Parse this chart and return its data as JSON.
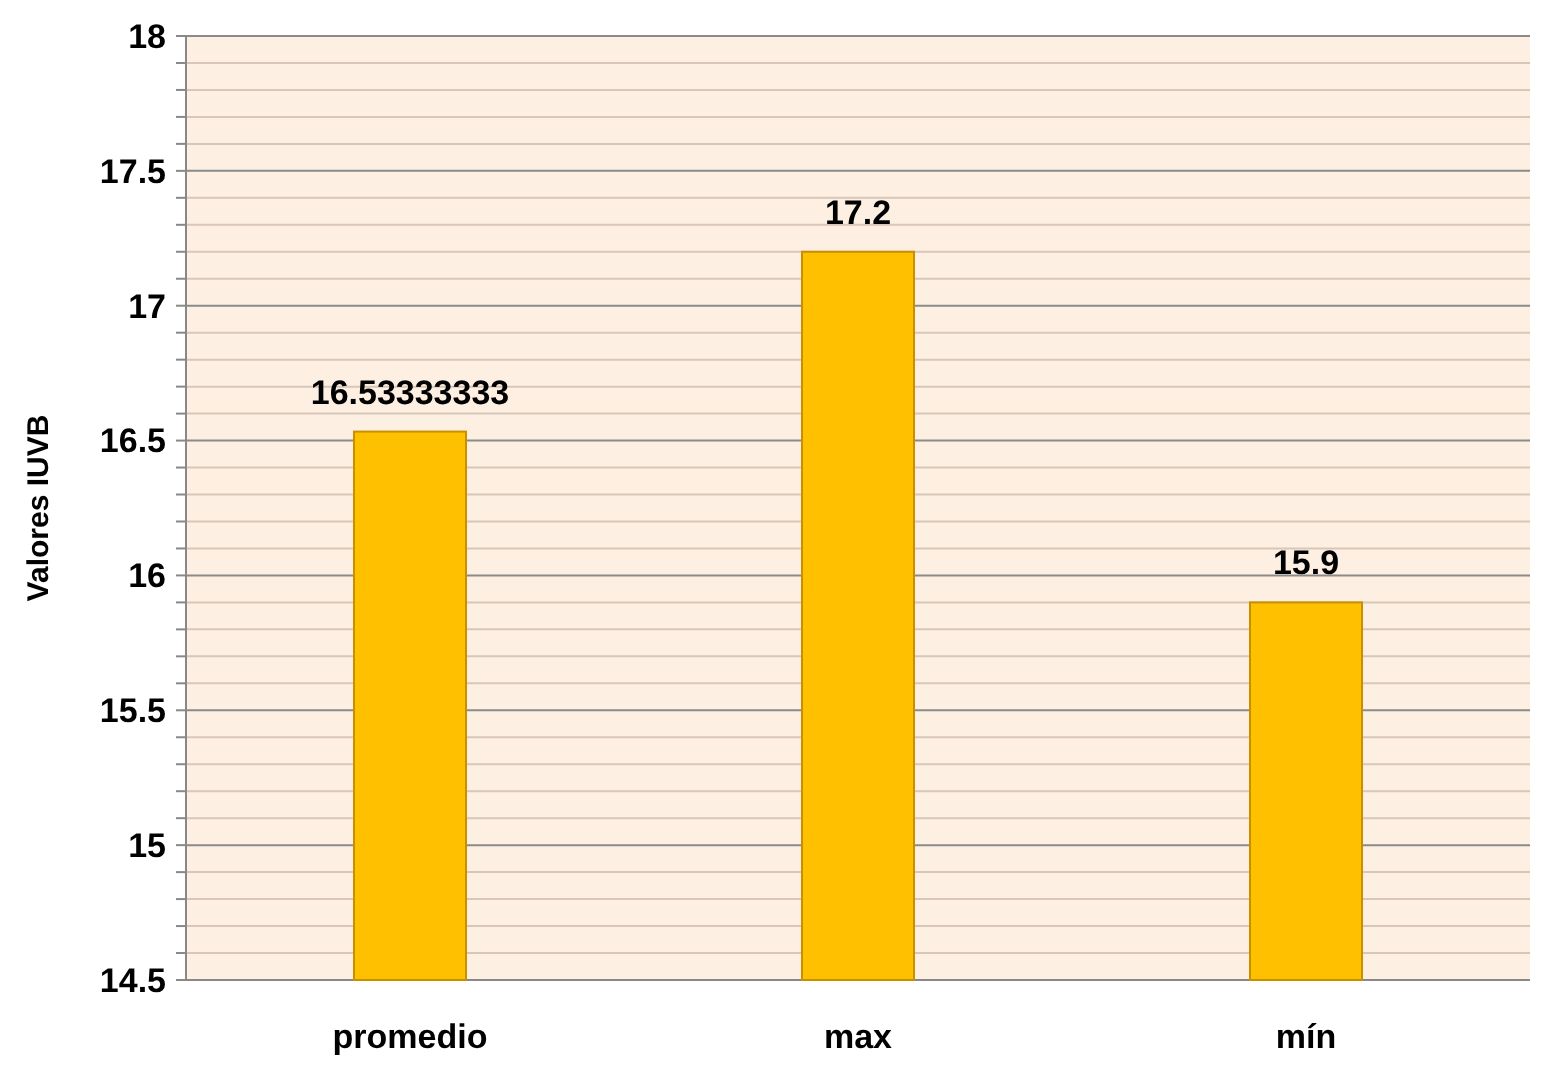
{
  "chart_data": {
    "type": "bar",
    "ylabel": "Valores IUVB",
    "categories": [
      "promedio",
      "max",
      "mín"
    ],
    "values": [
      16.53333333,
      17.2,
      15.9
    ],
    "color": "#ffc000",
    "data_labels": true,
    "grid": true,
    "ylim": [
      14.5,
      18
    ],
    "yticks": [
      14.5,
      {
        "value": 14.6,
        "label": null
      },
      {
        "value": 14.7,
        "label": null
      },
      {
        "value": 14.8,
        "label": null
      },
      {
        "value": 14.9,
        "label": null
      },
      15,
      {
        "value": 15.1,
        "label": null
      },
      {
        "value": 15.2,
        "label": null
      },
      {
        "value": 15.3,
        "label": null
      },
      {
        "value": 15.4,
        "label": null
      },
      15.5,
      {
        "value": 15.6,
        "label": null
      },
      {
        "value": 15.7,
        "label": null
      },
      {
        "value": 15.8,
        "label": null
      },
      {
        "value": 15.9,
        "label": null
      },
      16,
      {
        "value": 16.1,
        "label": null
      },
      {
        "value": 16.2,
        "label": null
      },
      {
        "value": 16.3,
        "label": null
      },
      {
        "value": 16.4,
        "label": null
      },
      16.5,
      {
        "value": 16.6,
        "label": null
      },
      {
        "value": 16.7,
        "label": null
      },
      {
        "value": 16.8,
        "label": null
      },
      {
        "value": 16.9,
        "label": null
      },
      17,
      {
        "value": 17.1,
        "label": null
      },
      {
        "value": 17.2,
        "label": null
      },
      {
        "value": 17.3,
        "label": null
      },
      {
        "value": 17.4,
        "label": null
      },
      17.5,
      {
        "value": 17.6,
        "label": null
      },
      {
        "value": 17.7,
        "label": null
      },
      {
        "value": 17.8,
        "label": null
      },
      {
        "value": 17.9,
        "label": null
      },
      18
    ]
  }
}
